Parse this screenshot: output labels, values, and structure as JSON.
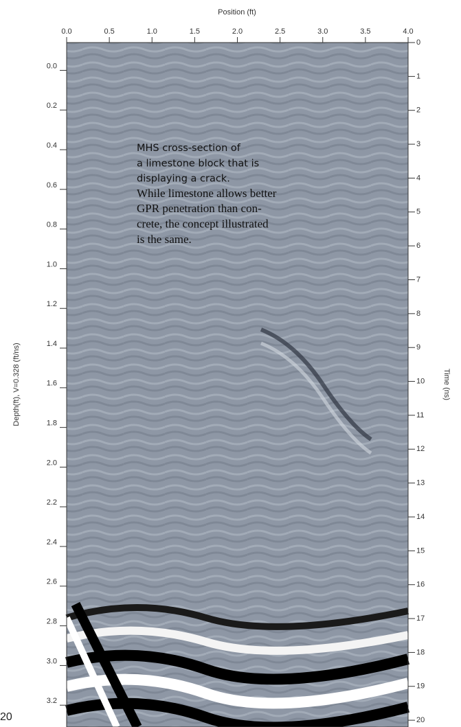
{
  "chart_data": {
    "type": "radargram",
    "xlabel": "Position (ft)",
    "ylabel": "Depth(ft), V=0.328 (ft/ns)",
    "y2label": "Time (ns)",
    "xlim": [
      0,
      4
    ],
    "xticks": [
      {
        "value": 0,
        "label": "0.0"
      },
      0.5,
      {
        "value": 1,
        "label": "1.0"
      },
      1.5,
      {
        "value": 2,
        "label": "2.0"
      },
      2.5,
      {
        "value": 3,
        "label": "3.0"
      },
      3.5,
      {
        "value": 4,
        "label": "4.0"
      }
    ],
    "ylim": [
      -0.14,
      3.31
    ],
    "yticks": [
      {
        "value": 0,
        "label": "0.0"
      },
      0.2,
      0.4,
      0.6,
      0.8,
      {
        "value": 1,
        "label": "1.0"
      },
      1.2,
      1.4,
      1.6,
      1.8,
      {
        "value": 2,
        "label": "2.0"
      },
      2.2,
      2.4,
      2.6,
      2.8,
      {
        "value": 3,
        "label": "3.0"
      },
      3.2
    ],
    "y2lim": [
      0,
      20.2
    ],
    "y2ticks": [
      0,
      1,
      2,
      3,
      4,
      5,
      6,
      7,
      8,
      9,
      10,
      11,
      12,
      13,
      14,
      15,
      16,
      17,
      18,
      19,
      20
    ],
    "annotation": [
      " MHS cross-section of",
      "a limestone block that is",
      "displaying a crack.",
      "While limestone allows better",
      "GPR penetration than con-",
      "crete, the concept illustrated",
      "is the same."
    ],
    "page_number": "20"
  }
}
